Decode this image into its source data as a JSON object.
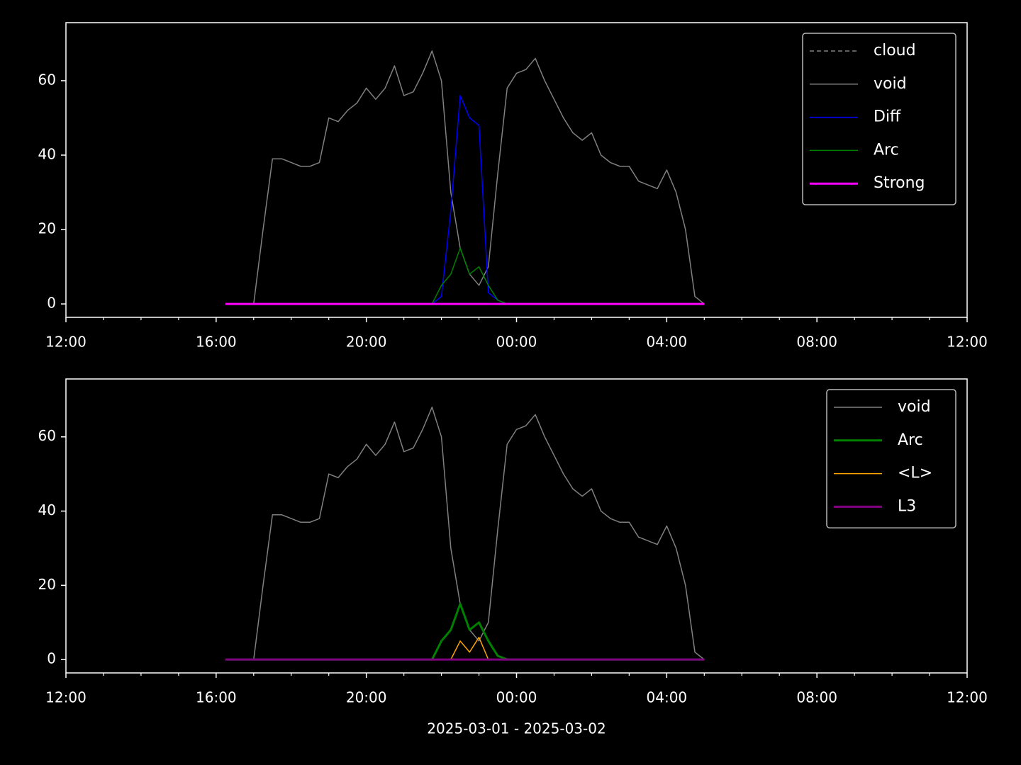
{
  "chart_data": [
    {
      "type": "line",
      "x": [
        16.25,
        16.5,
        16.75,
        17.0,
        17.25,
        17.5,
        17.75,
        18.0,
        18.25,
        18.5,
        18.75,
        19.0,
        19.25,
        19.5,
        19.75,
        20.0,
        20.25,
        20.5,
        20.75,
        21.0,
        21.25,
        21.5,
        21.75,
        22.0,
        22.25,
        22.5,
        22.75,
        23.0,
        23.25,
        23.5,
        23.75,
        24.0,
        24.25,
        24.5,
        24.75,
        25.0,
        25.25,
        25.5,
        25.75,
        26.0,
        26.25,
        26.5,
        26.75,
        27.0,
        27.25,
        27.5,
        27.75,
        28.0,
        28.25,
        28.5,
        28.75,
        29.0
      ],
      "series": [
        {
          "name": "cloud",
          "color": "#808080",
          "width": 1.5,
          "dash": true,
          "values": [
            0,
            0,
            0,
            0,
            0,
            0,
            0,
            0,
            0,
            0,
            0,
            0,
            0,
            0,
            0,
            0,
            0,
            0,
            0,
            0,
            0,
            0,
            0,
            0,
            0,
            0,
            0,
            0,
            0,
            0,
            0,
            0,
            0,
            0,
            0,
            0,
            0,
            0,
            0,
            0,
            0,
            0,
            0,
            0,
            0,
            0,
            0,
            0,
            0,
            0,
            0,
            0
          ]
        },
        {
          "name": "void",
          "color": "#808080",
          "width": 1.5,
          "values": [
            0,
            0,
            0,
            0,
            20,
            39,
            39,
            38,
            37,
            37,
            38,
            50,
            49,
            52,
            54,
            58,
            55,
            58,
            64,
            56,
            57,
            62,
            68,
            60,
            30,
            15,
            8,
            5,
            10,
            35,
            58,
            62,
            63,
            66,
            60,
            55,
            50,
            46,
            44,
            46,
            40,
            38,
            37,
            37,
            33,
            32,
            31,
            36,
            30,
            20,
            2,
            0
          ]
        },
        {
          "name": "Diff",
          "color": "#0000ff",
          "width": 1.5,
          "values": [
            0,
            0,
            0,
            0,
            0,
            0,
            0,
            0,
            0,
            0,
            0,
            0,
            0,
            0,
            0,
            0,
            0,
            0,
            0,
            0,
            0,
            0,
            0,
            2,
            25,
            56,
            50,
            48,
            3,
            1,
            0,
            0,
            0,
            0,
            0,
            0,
            0,
            0,
            0,
            0,
            0,
            0,
            0,
            0,
            0,
            0,
            0,
            0,
            0,
            0,
            0,
            0
          ]
        },
        {
          "name": "Arc",
          "color": "#008000",
          "width": 1.5,
          "values": [
            0,
            0,
            0,
            0,
            0,
            0,
            0,
            0,
            0,
            0,
            0,
            0,
            0,
            0,
            0,
            0,
            0,
            0,
            0,
            0,
            0,
            0,
            0,
            5,
            8,
            15,
            8,
            10,
            5,
            1,
            0,
            0,
            0,
            0,
            0,
            0,
            0,
            0,
            0,
            0,
            0,
            0,
            0,
            0,
            0,
            0,
            0,
            0,
            0,
            0,
            0,
            0
          ]
        },
        {
          "name": "Strong",
          "color": "#ff00ff",
          "width": 3,
          "values": [
            0,
            0,
            0,
            0,
            0,
            0,
            0,
            0,
            0,
            0,
            0,
            0,
            0,
            0,
            0,
            0,
            0,
            0,
            0,
            0,
            0,
            0,
            0,
            0,
            0,
            0,
            0,
            0,
            0,
            0,
            0,
            0,
            0,
            0,
            0,
            0,
            0,
            0,
            0,
            0,
            0,
            0,
            0,
            0,
            0,
            0,
            0,
            0,
            0,
            0,
            0,
            0
          ]
        }
      ],
      "xlim": [
        12,
        36
      ],
      "xticks": [
        {
          "value": 12,
          "label": "12:00"
        },
        {
          "value": 16,
          "label": "16:00"
        },
        {
          "value": 20,
          "label": "20:00"
        },
        {
          "value": 24,
          "label": "00:00"
        },
        {
          "value": 28,
          "label": "04:00"
        },
        {
          "value": 32,
          "label": "08:00"
        },
        {
          "value": 36,
          "label": "12:00"
        }
      ],
      "xminorticks": [
        13,
        14,
        15,
        17,
        18,
        19,
        21,
        22,
        23,
        25,
        26,
        27,
        29,
        30,
        31,
        33,
        34,
        35
      ],
      "ylim": [
        -3.6,
        75.6
      ],
      "yticks": [
        0,
        20,
        40,
        60
      ],
      "legend": "upper right"
    },
    {
      "type": "line",
      "x": [
        16.25,
        16.5,
        16.75,
        17.0,
        17.25,
        17.5,
        17.75,
        18.0,
        18.25,
        18.5,
        18.75,
        19.0,
        19.25,
        19.5,
        19.75,
        20.0,
        20.25,
        20.5,
        20.75,
        21.0,
        21.25,
        21.5,
        21.75,
        22.0,
        22.25,
        22.5,
        22.75,
        23.0,
        23.25,
        23.5,
        23.75,
        24.0,
        24.25,
        24.5,
        24.75,
        25.0,
        25.25,
        25.5,
        25.75,
        26.0,
        26.25,
        26.5,
        26.75,
        27.0,
        27.25,
        27.5,
        27.75,
        28.0,
        28.25,
        28.5,
        28.75,
        29.0
      ],
      "series": [
        {
          "name": "void",
          "color": "#808080",
          "width": 1.5,
          "values": [
            0,
            0,
            0,
            0,
            20,
            39,
            39,
            38,
            37,
            37,
            38,
            50,
            49,
            52,
            54,
            58,
            55,
            58,
            64,
            56,
            57,
            62,
            68,
            60,
            30,
            15,
            8,
            5,
            10,
            35,
            58,
            62,
            63,
            66,
            60,
            55,
            50,
            46,
            44,
            46,
            40,
            38,
            37,
            37,
            33,
            32,
            31,
            36,
            30,
            20,
            2,
            0
          ]
        },
        {
          "name": "Arc",
          "color": "#008000",
          "width": 3,
          "values": [
            0,
            0,
            0,
            0,
            0,
            0,
            0,
            0,
            0,
            0,
            0,
            0,
            0,
            0,
            0,
            0,
            0,
            0,
            0,
            0,
            0,
            0,
            0,
            5,
            8,
            15,
            8,
            10,
            5,
            1,
            0,
            0,
            0,
            0,
            0,
            0,
            0,
            0,
            0,
            0,
            0,
            0,
            0,
            0,
            0,
            0,
            0,
            0,
            0,
            0,
            0,
            0
          ]
        },
        {
          "name": "<L>",
          "color": "#ffa500",
          "width": 1.5,
          "values": [
            0,
            0,
            0,
            0,
            0,
            0,
            0,
            0,
            0,
            0,
            0,
            0,
            0,
            0,
            0,
            0,
            0,
            0,
            0,
            0,
            0,
            0,
            0,
            0,
            0,
            5,
            2,
            6,
            0,
            0,
            0,
            0,
            0,
            0,
            0,
            0,
            0,
            0,
            0,
            0,
            0,
            0,
            0,
            0,
            0,
            0,
            0,
            0,
            0,
            0,
            0,
            0
          ]
        },
        {
          "name": "L3",
          "color": "#800080",
          "width": 3,
          "values": [
            0,
            0,
            0,
            0,
            0,
            0,
            0,
            0,
            0,
            0,
            0,
            0,
            0,
            0,
            0,
            0,
            0,
            0,
            0,
            0,
            0,
            0,
            0,
            0,
            0,
            0,
            0,
            0,
            0,
            0,
            0,
            0,
            0,
            0,
            0,
            0,
            0,
            0,
            0,
            0,
            0,
            0,
            0,
            0,
            0,
            0,
            0,
            0,
            0,
            0,
            0,
            0
          ]
        }
      ],
      "xlim": [
        12,
        36
      ],
      "xticks": [
        {
          "value": 12,
          "label": "12:00"
        },
        {
          "value": 16,
          "label": "16:00"
        },
        {
          "value": 20,
          "label": "20:00"
        },
        {
          "value": 24,
          "label": "00:00"
        },
        {
          "value": 28,
          "label": "04:00"
        },
        {
          "value": 32,
          "label": "08:00"
        },
        {
          "value": 36,
          "label": "12:00"
        }
      ],
      "xminorticks": [
        13,
        14,
        15,
        17,
        18,
        19,
        21,
        22,
        23,
        25,
        26,
        27,
        29,
        30,
        31,
        33,
        34,
        35
      ],
      "ylim": [
        -3.6,
        75.6
      ],
      "yticks": [
        0,
        20,
        40,
        60
      ],
      "legend": "upper right",
      "xlabel": "2025-03-01 - 2025-03-02"
    }
  ]
}
